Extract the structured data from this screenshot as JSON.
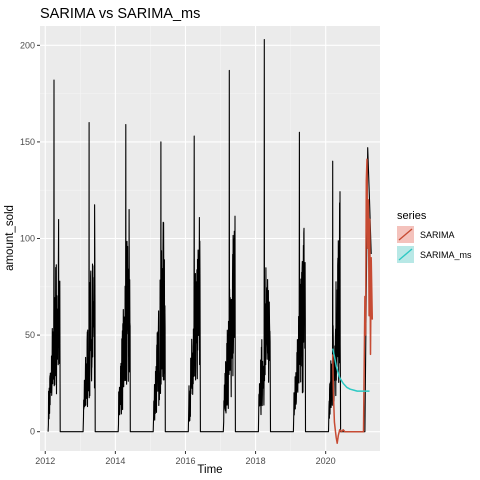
{
  "chart_data": {
    "type": "line",
    "title": "SARIMA vs SARIMA_ms",
    "xlabel": "Time",
    "ylabel": "amount_sold",
    "xlim": [
      2011.85,
      2021.55
    ],
    "ylim": [
      -10,
      210
    ],
    "x_ticks": [
      2012,
      2014,
      2016,
      2018,
      2020
    ],
    "x_tick_labels": [
      "2012",
      "2014",
      "2016",
      "2018",
      "2020"
    ],
    "y_ticks": [
      0,
      50,
      100,
      150,
      200
    ],
    "y_tick_labels": [
      "0",
      "50",
      "100",
      "150",
      "200"
    ],
    "grid": true,
    "legend": {
      "title": "series",
      "position": "right",
      "items": [
        {
          "label": "SARIMA",
          "color": "#C74B33",
          "fill": "#F4C2BC"
        },
        {
          "label": "SARIMA_ms",
          "color": "#2EC9C4",
          "fill": "#B8E8E6"
        }
      ]
    },
    "actual_series": {
      "color": "#000000",
      "season_months": [
        2,
        3,
        4
      ],
      "peaks": [
        {
          "x": 2012.25,
          "y": 182
        },
        {
          "x": 2013.25,
          "y": 160
        },
        {
          "x": 2014.3,
          "y": 159
        },
        {
          "x": 2015.3,
          "y": 150
        },
        {
          "x": 2016.25,
          "y": 153
        },
        {
          "x": 2017.25,
          "y": 187
        },
        {
          "x": 2018.25,
          "y": 203
        },
        {
          "x": 2019.25,
          "y": 155
        },
        {
          "x": 2020.2,
          "y": 140
        }
      ],
      "extra": [
        {
          "x": 2021.2,
          "y": 147
        },
        {
          "x": 2021.25,
          "y": 120
        },
        {
          "x": 2021.3,
          "y": 92
        }
      ]
    },
    "series": [
      {
        "name": "SARIMA",
        "color": "#C74B33",
        "x": [
          2020.2,
          2020.22,
          2020.25,
          2020.28,
          2020.3,
          2020.33,
          2020.36,
          2020.4,
          2020.45,
          2020.5,
          2020.55,
          2020.6,
          2020.7,
          2020.8,
          2020.9,
          2021.0,
          2021.08,
          2021.12,
          2021.14,
          2021.16,
          2021.18,
          2021.2,
          2021.22,
          2021.24,
          2021.26,
          2021.28,
          2021.3,
          2021.33
        ],
        "y": [
          40,
          20,
          5,
          0,
          -3,
          -6,
          -2,
          1,
          0,
          1,
          0,
          0,
          0,
          0,
          0,
          0,
          0,
          70,
          50,
          130,
          141,
          95,
          120,
          60,
          110,
          40,
          90,
          58
        ]
      },
      {
        "name": "SARIMA_ms",
        "color": "#2EC9C4",
        "x": [
          2020.2,
          2020.25,
          2020.3,
          2020.35,
          2020.4,
          2020.5,
          2020.6,
          2020.7,
          2020.8,
          2020.9,
          2021.0,
          2021.1,
          2021.2,
          2021.25
        ],
        "y": [
          43,
          39,
          34,
          31,
          28,
          25,
          23,
          22,
          21.5,
          21,
          21,
          21,
          21,
          21
        ]
      }
    ]
  }
}
